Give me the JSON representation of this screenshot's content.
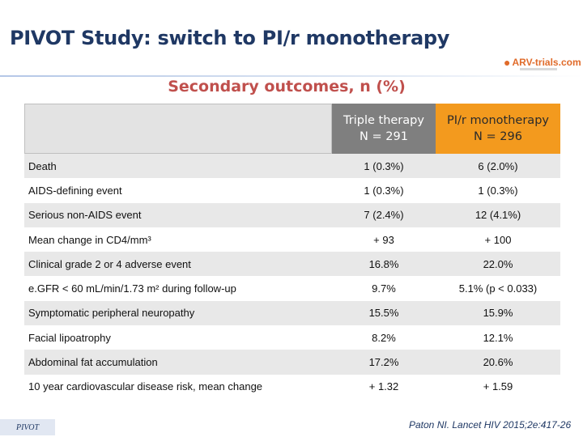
{
  "slide": {
    "title": "PIVOT Study: switch to PI/r monotherapy",
    "logo_text": "ARV-trials.com",
    "subtitle": "Secondary outcomes, n (%)"
  },
  "table": {
    "columns": [
      {
        "line1": "Triple therapy",
        "line2": "N = 291"
      },
      {
        "line1": "PI/r monotherapy",
        "line2": "N = 296"
      }
    ],
    "rows": [
      {
        "label": "Death",
        "v1": "1 (0.3%)",
        "v2": "6 (2.0%)"
      },
      {
        "label": "AIDS-defining event",
        "v1": "1 (0.3%)",
        "v2": "1 (0.3%)"
      },
      {
        "label": "Serious non-AIDS event",
        "v1": "7 (2.4%)",
        "v2": "12 (4.1%)"
      },
      {
        "label": "Mean change in CD4/mm³",
        "v1": "+ 93",
        "v2": "+ 100"
      },
      {
        "label": "Clinical grade 2 or 4 adverse event",
        "v1": "16.8%",
        "v2": "22.0%"
      },
      {
        "label": "e.GFR < 60 mL/min/1.73 m² during follow-up",
        "v1": "9.7%",
        "v2": "5.1% (p < 0.033)"
      },
      {
        "label": "Symptomatic peripheral neuropathy",
        "v1": "15.5%",
        "v2": "15.9%"
      },
      {
        "label": "Facial lipoatrophy",
        "v1": "8.2%",
        "v2": "12.1%"
      },
      {
        "label": "Abdominal fat accumulation",
        "v1": "17.2%",
        "v2": "20.6%"
      },
      {
        "label": "10 year cardiovascular disease risk, mean change",
        "v1": "+ 1.32",
        "v2": "+ 1.59"
      }
    ]
  },
  "footer": {
    "study_tag": "PIVOT",
    "citation": "Paton NI. Lancet HIV 2015;2e:417-26"
  }
}
